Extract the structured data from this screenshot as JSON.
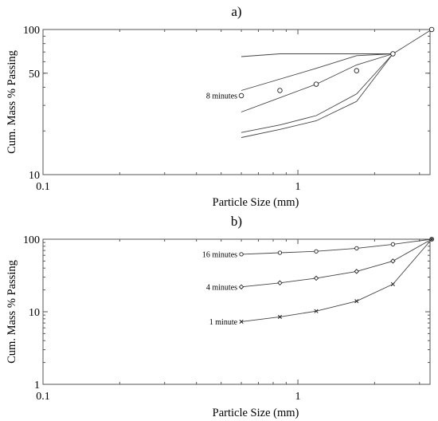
{
  "chart_data": [
    {
      "type": "line",
      "panel_label": "a)",
      "xlabel": "Particle Size (mm)",
      "ylabel": "Cum. Mass % Passing",
      "xscale": "log",
      "yscale": "log",
      "xlim": [
        0.1,
        3.3
      ],
      "ylim": [
        10,
        100
      ],
      "x_ticks": [
        0.1,
        1
      ],
      "x_tick_labels": [
        "0.1",
        "1"
      ],
      "y_ticks": [
        10,
        50,
        100
      ],
      "y_tick_labels": [
        "10",
        "50",
        "100"
      ],
      "grid": false,
      "series": [
        {
          "x": [
            0.6,
            0.85,
            2.36
          ],
          "y": [
            65,
            68,
            68
          ],
          "style": "line"
        },
        {
          "x": [
            0.6,
            1.18,
            1.7,
            2.36,
            3.35
          ],
          "y": [
            38,
            54,
            66,
            68,
            100
          ],
          "style": "line"
        },
        {
          "x": [
            0.6,
            1.18,
            1.7,
            2.36
          ],
          "y": [
            27,
            42,
            57,
            68
          ],
          "style": "line"
        },
        {
          "x": [
            0.6,
            0.85,
            1.18,
            1.7,
            2.36
          ],
          "y": [
            19.5,
            22,
            25.5,
            36,
            68
          ],
          "style": "line"
        },
        {
          "x": [
            0.6,
            0.85,
            1.18,
            1.7,
            2.36
          ],
          "y": [
            18,
            20.5,
            23.5,
            32,
            68
          ],
          "style": "line"
        },
        {
          "name": "8 minutes",
          "x": [
            0.6,
            0.85,
            1.18,
            1.7,
            2.36,
            3.35
          ],
          "y": [
            35,
            38,
            42,
            52,
            68,
            100
          ],
          "style": "markers",
          "marker": "circle"
        }
      ],
      "annotations": [
        {
          "text": "8 minutes",
          "x": 0.6,
          "y": 35
        }
      ]
    },
    {
      "type": "line",
      "panel_label": "b)",
      "xlabel": "Particle Size (mm)",
      "ylabel": "Cum. Mass % Passing",
      "xscale": "log",
      "yscale": "log",
      "xlim": [
        0.1,
        3.3
      ],
      "ylim": [
        1,
        100
      ],
      "x_ticks": [
        0.1,
        1
      ],
      "x_tick_labels": [
        "0.1",
        "1"
      ],
      "y_ticks": [
        1,
        10,
        100
      ],
      "y_tick_labels": [
        "1",
        "10",
        "100"
      ],
      "grid": false,
      "series": [
        {
          "name": "16 minutes",
          "x": [
            0.6,
            0.85,
            1.18,
            1.7,
            2.36,
            3.35
          ],
          "y": [
            62,
            65,
            68,
            75,
            85,
            100
          ],
          "marker": "circle"
        },
        {
          "name": "4 minutes",
          "x": [
            0.6,
            0.85,
            1.18,
            1.7,
            2.36,
            3.35
          ],
          "y": [
            22,
            25,
            29,
            36,
            50,
            100
          ],
          "marker": "diamond"
        },
        {
          "name": "1 minute",
          "x": [
            0.6,
            0.85,
            1.18,
            1.7,
            2.36,
            3.35
          ],
          "y": [
            7.3,
            8.5,
            10.2,
            14,
            24,
            100
          ],
          "marker": "cross"
        }
      ],
      "annotations": [
        {
          "text": "16 minutes",
          "x": 0.6,
          "y": 62
        },
        {
          "text": "4 minutes",
          "x": 0.6,
          "y": 22
        },
        {
          "text": "1 minute",
          "x": 0.6,
          "y": 7.3
        }
      ]
    }
  ]
}
